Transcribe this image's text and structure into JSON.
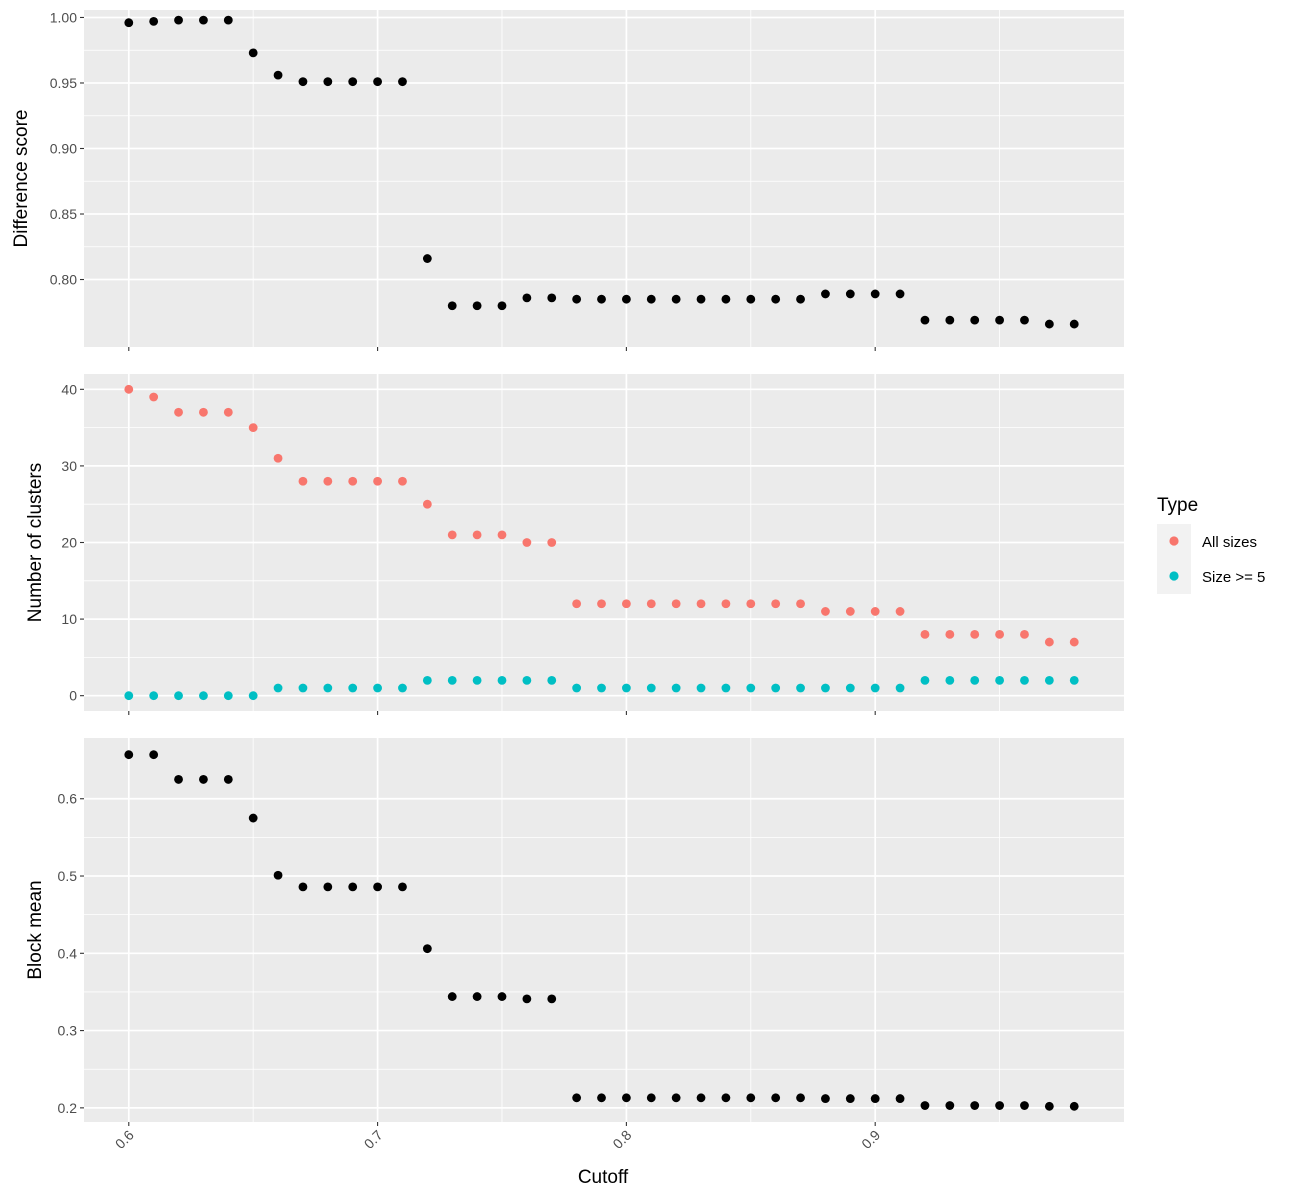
{
  "chart_data": [
    {
      "type": "scatter",
      "ylabel": "Difference score",
      "x": [
        0.6,
        0.61,
        0.62,
        0.63,
        0.64,
        0.65,
        0.66,
        0.67,
        0.68,
        0.69,
        0.7,
        0.71,
        0.72,
        0.73,
        0.74,
        0.75,
        0.76,
        0.77,
        0.78,
        0.79,
        0.8,
        0.81,
        0.82,
        0.83,
        0.84,
        0.85,
        0.86,
        0.87,
        0.88,
        0.89,
        0.9,
        0.91,
        0.92,
        0.93,
        0.94,
        0.95,
        0.96,
        0.97,
        0.98
      ],
      "series": [
        {
          "color": "#000000",
          "values": [
            0.996,
            0.997,
            0.998,
            0.998,
            0.998,
            0.973,
            0.956,
            0.951,
            0.951,
            0.951,
            0.951,
            0.951,
            0.816,
            0.78,
            0.78,
            0.78,
            0.786,
            0.786,
            0.785,
            0.785,
            0.785,
            0.785,
            0.785,
            0.785,
            0.785,
            0.785,
            0.785,
            0.785,
            0.789,
            0.789,
            0.789,
            0.789,
            0.769,
            0.769,
            0.769,
            0.769,
            0.769,
            0.766,
            0.766
          ]
        }
      ],
      "yticks": [
        "1.00",
        "0.95",
        "0.90",
        "0.85",
        "0.80"
      ],
      "ytick_values": [
        1.0,
        0.95,
        0.9,
        0.85,
        0.8
      ],
      "ylim": [
        0.7485,
        1.0057
      ]
    },
    {
      "type": "scatter",
      "ylabel": "Number of clusters",
      "x": [
        0.6,
        0.61,
        0.62,
        0.63,
        0.64,
        0.65,
        0.66,
        0.67,
        0.68,
        0.69,
        0.7,
        0.71,
        0.72,
        0.73,
        0.74,
        0.75,
        0.76,
        0.77,
        0.78,
        0.79,
        0.8,
        0.81,
        0.82,
        0.83,
        0.84,
        0.85,
        0.86,
        0.87,
        0.88,
        0.89,
        0.9,
        0.91,
        0.92,
        0.93,
        0.94,
        0.95,
        0.96,
        0.97,
        0.98
      ],
      "series": [
        {
          "name": "All sizes",
          "color": "#F8766D",
          "values": [
            40,
            39,
            37,
            37,
            37,
            35,
            31,
            28,
            28,
            28,
            28,
            28,
            25,
            21,
            21,
            21,
            20,
            20,
            12,
            12,
            12,
            12,
            12,
            12,
            12,
            12,
            12,
            12,
            11,
            11,
            11,
            11,
            8,
            8,
            8,
            8,
            8,
            7,
            7
          ]
        },
        {
          "name": "Size >= 5",
          "color": "#00BFC4",
          "values": [
            0,
            0,
            0,
            0,
            0,
            0,
            1,
            1,
            1,
            1,
            1,
            1,
            2,
            2,
            2,
            2,
            2,
            2,
            1,
            1,
            1,
            1,
            1,
            1,
            1,
            1,
            1,
            1,
            1,
            1,
            1,
            1,
            2,
            2,
            2,
            2,
            2,
            2,
            2
          ]
        }
      ],
      "yticks": [
        "40",
        "30",
        "20",
        "10",
        "0"
      ],
      "ytick_values": [
        40,
        30,
        20,
        10,
        0
      ],
      "ylim": [
        -2.0,
        42.0
      ]
    },
    {
      "type": "scatter",
      "ylabel": "Block mean",
      "xlabel": "Cutoff",
      "x": [
        0.6,
        0.61,
        0.62,
        0.63,
        0.64,
        0.65,
        0.66,
        0.67,
        0.68,
        0.69,
        0.7,
        0.71,
        0.72,
        0.73,
        0.74,
        0.75,
        0.76,
        0.77,
        0.78,
        0.79,
        0.8,
        0.81,
        0.82,
        0.83,
        0.84,
        0.85,
        0.86,
        0.87,
        0.88,
        0.89,
        0.9,
        0.91,
        0.92,
        0.93,
        0.94,
        0.95,
        0.96,
        0.97,
        0.98
      ],
      "series": [
        {
          "color": "#000000",
          "values": [
            0.657,
            0.657,
            0.625,
            0.625,
            0.625,
            0.575,
            0.501,
            0.486,
            0.486,
            0.486,
            0.486,
            0.486,
            0.406,
            0.344,
            0.344,
            0.344,
            0.341,
            0.341,
            0.213,
            0.213,
            0.213,
            0.213,
            0.213,
            0.213,
            0.213,
            0.213,
            0.213,
            0.213,
            0.212,
            0.212,
            0.212,
            0.212,
            0.203,
            0.203,
            0.203,
            0.203,
            0.203,
            0.202,
            0.202
          ]
        }
      ],
      "yticks": [
        "0.6",
        "0.5",
        "0.4",
        "0.3",
        "0.2"
      ],
      "ytick_values": [
        0.6,
        0.5,
        0.4,
        0.3,
        0.2
      ],
      "ylim": [
        0.1817,
        0.6786
      ]
    }
  ],
  "x_axis": {
    "xlim": [
      0.582,
      1.0
    ],
    "ticks": [
      "0.6",
      "0.7",
      "0.8",
      "0.9"
    ],
    "tick_values": [
      0.6,
      0.7,
      0.8,
      0.9
    ],
    "minor_tick_values": [
      0.65,
      0.75,
      0.85,
      0.95
    ],
    "tick_label_rotation_deg": -45
  },
  "legend": {
    "title": "Type",
    "position": "right",
    "items": [
      {
        "label": "All sizes",
        "color": "#F8766D"
      },
      {
        "label": "Size >= 5",
        "color": "#00BFC4"
      }
    ]
  },
  "style": {
    "panel_background": "#EBEBEB",
    "grid_color": "#FFFFFF",
    "tick_color": "#333333"
  }
}
